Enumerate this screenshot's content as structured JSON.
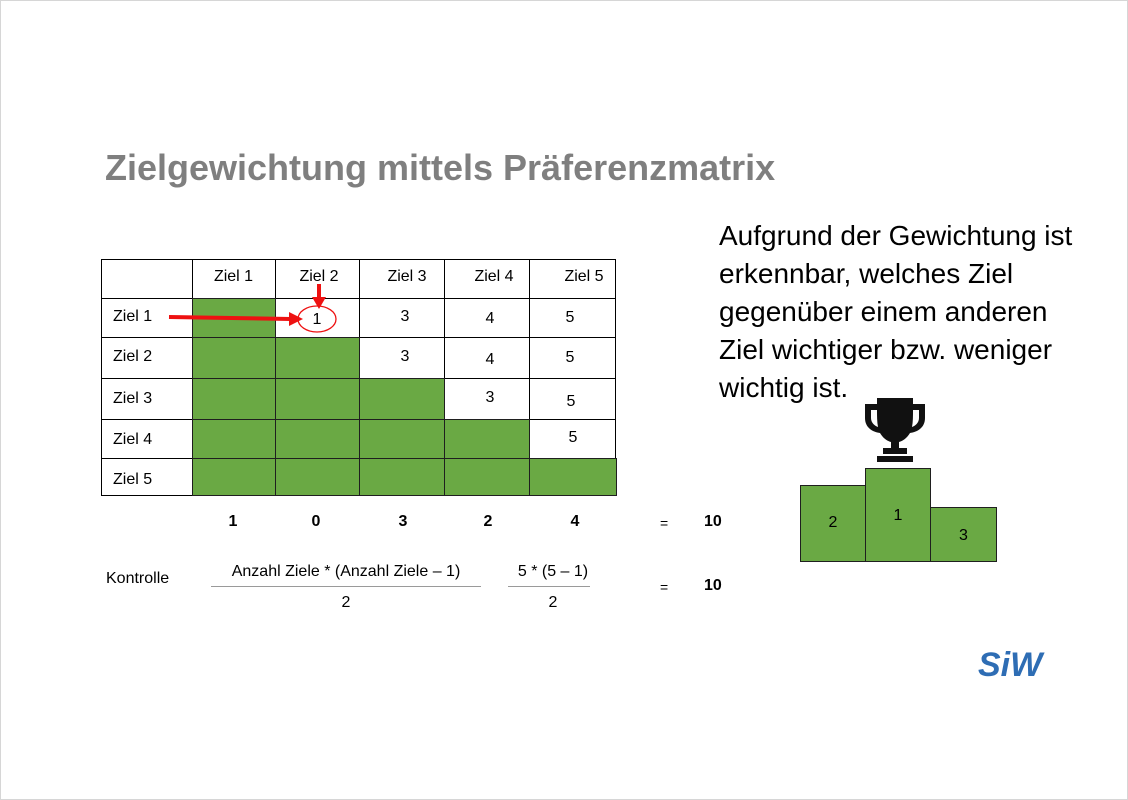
{
  "slide": {
    "title": "Zielgewichtung mittels Präferenzmatrix",
    "description": "Aufgrund der Gewichtung ist erkennbar, welches Ziel gegenüber einem anderen Ziel wichtiger bzw. weniger wichtig ist."
  },
  "matrix": {
    "col_headers": [
      "Ziel 1",
      "Ziel 2",
      "Ziel 3",
      "Ziel 4",
      "Ziel 5"
    ],
    "row_headers": [
      "Ziel 1",
      "Ziel 2",
      "Ziel 3",
      "Ziel 4",
      "Ziel 5"
    ],
    "cells": {
      "r1": [
        "1",
        "3",
        "4",
        "5"
      ],
      "r2": [
        "3",
        "4",
        "5"
      ],
      "r3": [
        "3",
        "5"
      ],
      "r4": [
        "5"
      ]
    },
    "totals": [
      "1",
      "0",
      "3",
      "2",
      "4"
    ],
    "equals": "=",
    "sum": "10"
  },
  "kontrolle": {
    "label": "Kontrolle",
    "formula_numerator": "Anzahl Ziele * (Anzahl Ziele – 1)",
    "formula_denominator": "2",
    "example_numerator": "5 * (5 – 1)",
    "example_denominator": "2",
    "equals": "=",
    "result": "10"
  },
  "podium": {
    "left": "2",
    "center": "1",
    "right": "3"
  },
  "logo": {
    "text": "SiW",
    "color": "#2e6db4"
  },
  "colors": {
    "green": "#6aa944",
    "arrow": "#ee1111",
    "title": "#7f7f7f"
  }
}
